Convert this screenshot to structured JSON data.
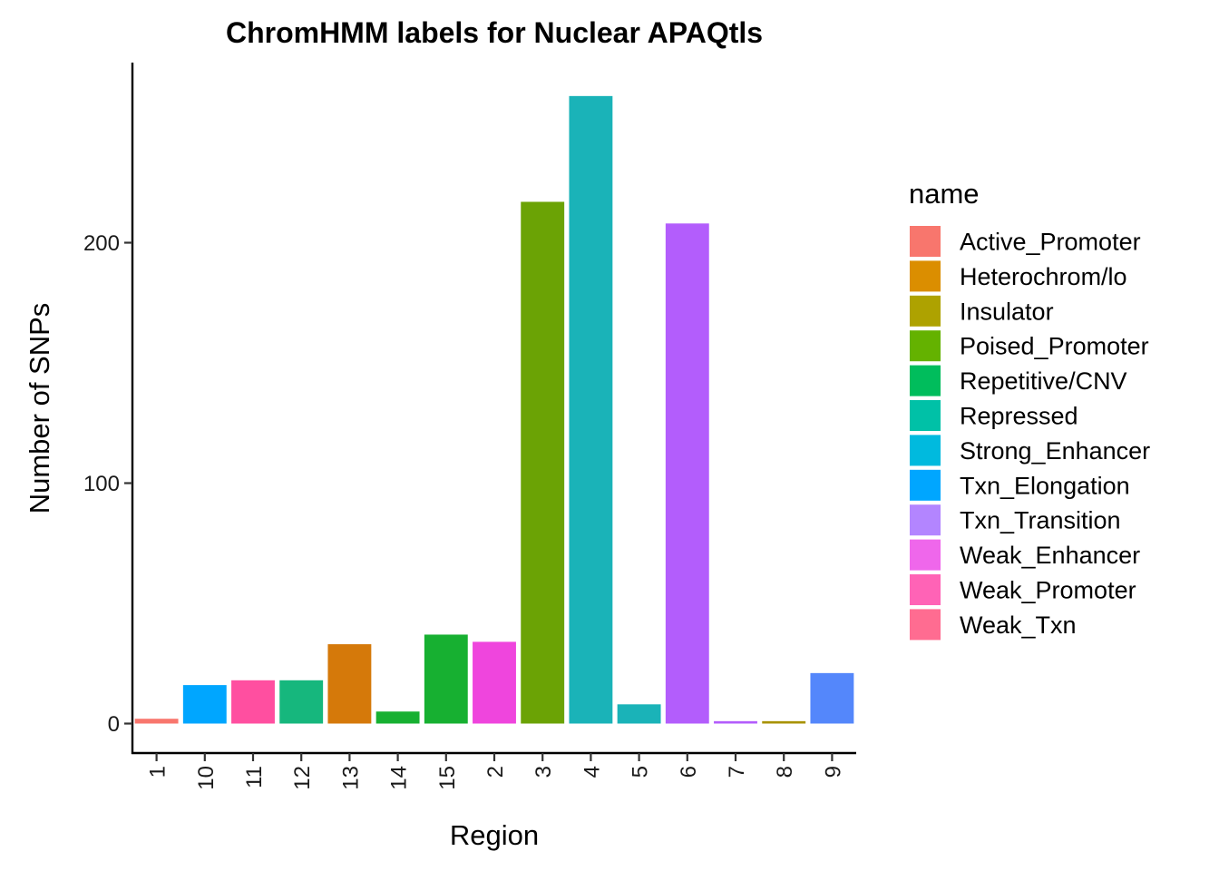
{
  "chart_data": {
    "type": "bar",
    "title": "ChromHMM labels for Nuclear APAQtls",
    "xlabel": "Region",
    "ylabel": "Number of SNPs",
    "ylim": [
      -12.5,
      274
    ],
    "yticks": [
      0,
      100,
      200
    ],
    "grid": false,
    "legend": {
      "title": "name",
      "position": "right",
      "entries": [
        {
          "name": "Active_Promoter",
          "color": "#F8766D"
        },
        {
          "name": "Heterochrom/lo",
          "color": "#DB8E00"
        },
        {
          "name": "Insulator",
          "color": "#AEA200"
        },
        {
          "name": "Poised_Promoter",
          "color": "#64B200"
        },
        {
          "name": "Repetitive/CNV",
          "color": "#00BD5C"
        },
        {
          "name": "Repressed",
          "color": "#00C1A7"
        },
        {
          "name": "Strong_Enhancer",
          "color": "#00BADE"
        },
        {
          "name": "Txn_Elongation",
          "color": "#00A6FF"
        },
        {
          "name": "Txn_Transition",
          "color": "#B385FF"
        },
        {
          "name": "Weak_Enhancer",
          "color": "#EF67EB"
        },
        {
          "name": "Weak_Promoter",
          "color": "#FF63B6"
        },
        {
          "name": "Weak_Txn",
          "color": "#FF6C91"
        }
      ]
    },
    "categories": [
      "1",
      "10",
      "11",
      "12",
      "13",
      "14",
      "15",
      "2",
      "3",
      "4",
      "5",
      "6",
      "7",
      "8",
      "9"
    ],
    "bars": [
      {
        "category": "1",
        "value": 2,
        "name": "Active_Promoter",
        "color": "#F8766D"
      },
      {
        "category": "10",
        "value": 16,
        "name": "Txn_Elongation",
        "color": "#00A6FF"
      },
      {
        "category": "11",
        "value": 18,
        "name": "Weak_Txn",
        "color": "#FF4FA0"
      },
      {
        "category": "12",
        "value": 18,
        "name": "Repressed",
        "color": "#16B77D"
      },
      {
        "category": "13",
        "value": 33,
        "name": "Heterochrom/lo",
        "color": "#D5790A"
      },
      {
        "category": "14",
        "value": 5,
        "name": "Repetitive/CNV",
        "color": "#17B031"
      },
      {
        "category": "15",
        "value": 37,
        "name": "Repetitive/CNV",
        "color": "#17B031"
      },
      {
        "category": "2",
        "value": 34,
        "name": "Weak_Promoter",
        "color": "#EF45DD"
      },
      {
        "category": "3",
        "value": 217,
        "name": "Poised_Promoter",
        "color": "#6BA305"
      },
      {
        "category": "4",
        "value": 261,
        "name": "Strong_Enhancer",
        "color": "#1AB3B8"
      },
      {
        "category": "5",
        "value": 8,
        "name": "Strong_Enhancer",
        "color": "#1AB3B8"
      },
      {
        "category": "6",
        "value": 208,
        "name": "Weak_Enhancer",
        "color": "#B35DFC"
      },
      {
        "category": "7",
        "value": 1,
        "name": "Weak_Enhancer",
        "color": "#B35DFC"
      },
      {
        "category": "8",
        "value": 1,
        "name": "Insulator",
        "color": "#A89203"
      },
      {
        "category": "9",
        "value": 21,
        "name": "Txn_Transition",
        "color": "#5487FB"
      }
    ]
  }
}
